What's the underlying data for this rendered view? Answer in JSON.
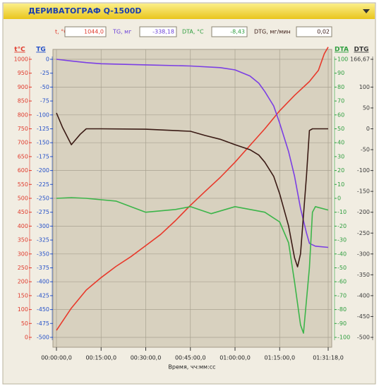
{
  "header": {
    "title": "ДЕРИВАТОГРАФ Q-1500D",
    "readouts": [
      {
        "label": "t, °C",
        "value": "1044,0",
        "color": "#e03a2c"
      },
      {
        "label": "TG, мг",
        "value": "-338,18",
        "color": "#6a3fd8"
      },
      {
        "label": "DTA, °C",
        "value": "-8,43",
        "color": "#2e9e3e"
      },
      {
        "label": "DTG, мг/мин",
        "value": "0,02",
        "color": "#3a1a14"
      }
    ]
  },
  "chart_data": {
    "type": "line",
    "x_label": "Время, чч:мм:сс",
    "y_label": "t°C",
    "y2_label": "TG",
    "y3_label": "DTA",
    "y4_label": "DTG",
    "xlim": [
      0,
      5478
    ],
    "xticks": [
      {
        "value": 0,
        "label": "00:00:00,0"
      },
      {
        "value": 900,
        "label": "00:15:00,0"
      },
      {
        "value": 1800,
        "label": "00:30:00,0"
      },
      {
        "value": 2700,
        "label": "00:45:00,0"
      },
      {
        "value": 3600,
        "label": "01:00:00,0"
      },
      {
        "value": 4500,
        "label": "01:15:00,0"
      },
      {
        "value": 5478,
        "label": "01:31:18,0"
      }
    ],
    "ylim": [
      0,
      1000
    ],
    "yticks": [
      1000,
      950,
      900,
      850,
      800,
      750,
      700,
      650,
      600,
      550,
      500,
      450,
      400,
      350,
      300,
      250,
      200,
      150,
      100,
      50,
      0
    ],
    "y2lim": [
      -500,
      0
    ],
    "y2ticks": [
      0,
      -25,
      -50,
      -75,
      -100,
      -125,
      -150,
      -175,
      -200,
      -225,
      -250,
      -275,
      -300,
      -325,
      -350,
      -375,
      -400,
      -425,
      -450,
      -475,
      -500
    ],
    "y3lim": [
      -100,
      100
    ],
    "y3ticks": [
      100,
      90,
      80,
      70,
      60,
      50,
      40,
      30,
      20,
      10,
      0,
      -10,
      -20,
      -30,
      -40,
      -50,
      -60,
      -70,
      -80,
      -90,
      -100
    ],
    "y4lim": [
      -500,
      166.67
    ],
    "y4ticks": [
      {
        "value": 166.67,
        "label": "166,67"
      },
      100,
      50,
      0,
      -50,
      -100,
      -150,
      -200,
      -250,
      -300,
      -350,
      -400,
      -450,
      -500
    ],
    "grid": true,
    "series": [
      {
        "name": "t",
        "axis": "y",
        "color": "#e8392b",
        "x": [
          0,
          300,
          600,
          900,
          1200,
          1500,
          1800,
          2100,
          2400,
          2700,
          3000,
          3300,
          3600,
          3900,
          4200,
          4500,
          4800,
          5100,
          5280,
          5400,
          5478
        ],
        "values": [
          25,
          105,
          170,
          215,
          255,
          290,
          330,
          370,
          420,
          475,
          525,
          575,
          630,
          690,
          750,
          815,
          870,
          920,
          960,
          1020,
          1044
        ]
      },
      {
        "name": "TG",
        "axis": "y2",
        "color": "#7b3fe4",
        "x": [
          0,
          300,
          600,
          900,
          1800,
          2700,
          3300,
          3600,
          3900,
          4080,
          4200,
          4380,
          4500,
          4680,
          4800,
          4920,
          5040,
          5100,
          5220,
          5478
        ],
        "values": [
          0,
          -3,
          -6,
          -8,
          -10,
          -12,
          -15,
          -19,
          -30,
          -43,
          -58,
          -84,
          -115,
          -166,
          -210,
          -268,
          -312,
          -331,
          -336,
          -338.18
        ]
      },
      {
        "name": "DTA",
        "axis": "y3",
        "color": "#3cb54a",
        "x": [
          0,
          300,
          600,
          900,
          1200,
          1800,
          2400,
          2700,
          3120,
          3600,
          4200,
          4500,
          4680,
          4800,
          4920,
          4980,
          5100,
          5160,
          5220,
          5478
        ],
        "values": [
          0,
          0.5,
          0,
          -1,
          -2,
          -10,
          -8,
          -6,
          -11,
          -6,
          -10,
          -17,
          -32,
          -60,
          -91,
          -97,
          -50,
          -10,
          -6,
          -8.43
        ]
      },
      {
        "name": "DTG",
        "axis": "y4",
        "color": "#3a1a14",
        "x": [
          0,
          120,
          300,
          480,
          600,
          900,
          1800,
          2700,
          3000,
          3300,
          3600,
          3900,
          4080,
          4200,
          4380,
          4500,
          4680,
          4800,
          4860,
          4920,
          5040,
          5100,
          5160,
          5478
        ],
        "values": [
          38,
          4,
          -38,
          -13,
          0,
          0,
          -1,
          -6,
          -16,
          -25,
          -38,
          -50,
          -63,
          -80,
          -114,
          -156,
          -233,
          -309,
          -331,
          -300,
          -114,
          -4,
          0.02,
          0.02
        ]
      }
    ]
  }
}
